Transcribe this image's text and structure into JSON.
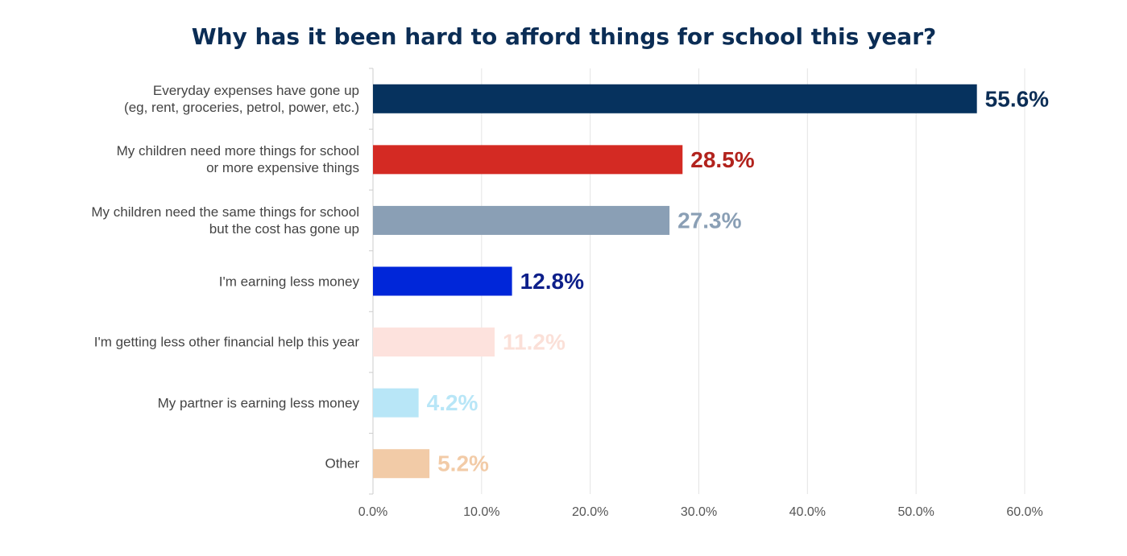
{
  "chart_data": {
    "type": "bar",
    "orientation": "horizontal",
    "title": "Why has it been hard to afford things for school this year?",
    "categories": [
      "Everyday expenses have gone up\n(eg, rent, groceries, petrol, power, etc.)",
      "My children need more things for school\nor more expensive things",
      "My children need the same things for school\nbut the cost has gone up",
      "I'm earning less money",
      "I'm getting less other financial help this year",
      "My partner is earning less money",
      "Other"
    ],
    "values": [
      55.6,
      28.5,
      27.3,
      12.8,
      11.2,
      4.2,
      5.2
    ],
    "value_labels": [
      "55.6%",
      "28.5%",
      "27.3%",
      "12.8%",
      "11.2%",
      "4.2%",
      "5.2%"
    ],
    "colors": [
      "#06325e",
      "#d42a23",
      "#8a9fb5",
      "#0026d9",
      "#fde2dd",
      "#b8e6f7",
      "#f2cba7"
    ],
    "label_colors": [
      "#0b2d55",
      "#b2231d",
      "#8a9fb5",
      "#0d1f8a",
      "#fbe0d8",
      "#b8e6f7",
      "#f2cba7"
    ],
    "xlim": [
      0,
      60
    ],
    "xticks": [
      {
        "value": 0,
        "label": "0.0%"
      },
      {
        "value": 10,
        "label": "10.0%"
      },
      {
        "value": 20,
        "label": "20.0%"
      },
      {
        "value": 30,
        "label": "30.0%"
      },
      {
        "value": 40,
        "label": "40.0%"
      },
      {
        "value": 50,
        "label": "50.0%"
      },
      {
        "value": 60,
        "label": "60.0%"
      }
    ],
    "grid": true
  }
}
